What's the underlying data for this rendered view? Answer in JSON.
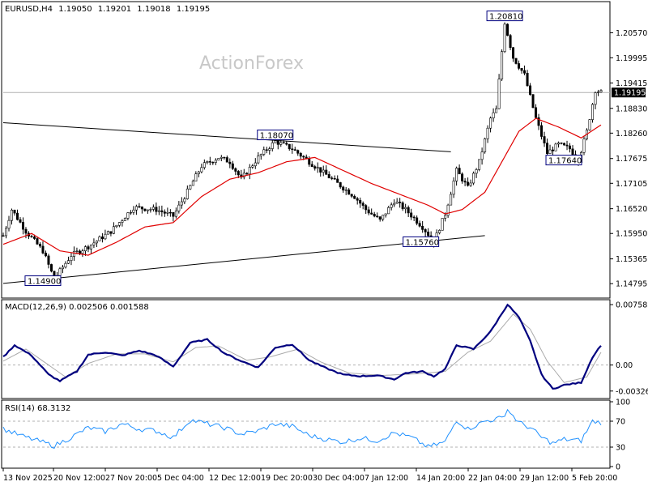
{
  "header": {
    "symbol": "EURUSD,H4",
    "open": "1.19050",
    "high": "1.19201",
    "low": "1.19018",
    "close": "1.19195"
  },
  "watermark": "ActionForex",
  "colors": {
    "candle": "#000000",
    "ma_line": "#e00000",
    "macd_main": "#00007f",
    "macd_signal": "#aaaaaa",
    "rsi_line": "#1e90ff",
    "current_price_box": "#000000",
    "label_border": "#00007f"
  },
  "chart_data": [
    {
      "type": "candlestick",
      "panel": "price",
      "ylim": [
        1.145,
        1.2125
      ],
      "y_ticks": [
        "1.20570",
        "1.19995",
        "1.19415",
        "1.18830",
        "1.18260",
        "1.17675",
        "1.17105",
        "1.16520",
        "1.15950",
        "1.15365",
        "1.14795"
      ],
      "current_price": "1.19195",
      "x_ticks": [
        "13 Nov 2025",
        "20 Nov 12:00",
        "27 Nov 20:00",
        "5 Dec 04:00",
        "12 Dec 12:00",
        "19 Dec 20:00",
        "30 Dec 04:00",
        "7 Jan 12:00",
        "14 Jan 20:00",
        "22 Jan 04:00",
        "29 Jan 12:00",
        "5 Feb 20:00"
      ],
      "price_path": [
        {
          "bar": 0,
          "price": 1.159
        },
        {
          "bar": 3,
          "price": 1.165
        },
        {
          "bar": 8,
          "price": 1.16
        },
        {
          "bar": 14,
          "price": 1.1555
        },
        {
          "bar": 18,
          "price": 1.149
        },
        {
          "bar": 24,
          "price": 1.1545
        },
        {
          "bar": 30,
          "price": 1.1565
        },
        {
          "bar": 38,
          "price": 1.16
        },
        {
          "bar": 46,
          "price": 1.1655
        },
        {
          "bar": 54,
          "price": 1.165
        },
        {
          "bar": 60,
          "price": 1.1635
        },
        {
          "bar": 64,
          "price": 1.168
        },
        {
          "bar": 70,
          "price": 1.175
        },
        {
          "bar": 76,
          "price": 1.177
        },
        {
          "bar": 80,
          "price": 1.176
        },
        {
          "bar": 84,
          "price": 1.172
        },
        {
          "bar": 90,
          "price": 1.177
        },
        {
          "bar": 96,
          "price": 1.1807
        },
        {
          "bar": 102,
          "price": 1.179
        },
        {
          "bar": 108,
          "price": 1.176
        },
        {
          "bar": 112,
          "price": 1.174
        },
        {
          "bar": 118,
          "price": 1.171
        },
        {
          "bar": 124,
          "price": 1.168
        },
        {
          "bar": 128,
          "price": 1.165
        },
        {
          "bar": 133,
          "price": 1.1625
        },
        {
          "bar": 138,
          "price": 1.167
        },
        {
          "bar": 142,
          "price": 1.165
        },
        {
          "bar": 148,
          "price": 1.161
        },
        {
          "bar": 152,
          "price": 1.1576
        },
        {
          "bar": 156,
          "price": 1.164
        },
        {
          "bar": 160,
          "price": 1.174
        },
        {
          "bar": 164,
          "price": 1.17
        },
        {
          "bar": 168,
          "price": 1.176
        },
        {
          "bar": 172,
          "price": 1.186
        },
        {
          "bar": 174,
          "price": 1.188
        },
        {
          "bar": 177,
          "price": 1.2081
        },
        {
          "bar": 180,
          "price": 1.2
        },
        {
          "bar": 184,
          "price": 1.196
        },
        {
          "bar": 188,
          "price": 1.186
        },
        {
          "bar": 192,
          "price": 1.178
        },
        {
          "bar": 196,
          "price": 1.18
        },
        {
          "bar": 200,
          "price": 1.179
        },
        {
          "bar": 203,
          "price": 1.1764
        },
        {
          "bar": 206,
          "price": 1.183
        },
        {
          "bar": 209,
          "price": 1.1925
        },
        {
          "bar": 211,
          "price": 1.192
        }
      ],
      "labels": [
        {
          "text": "1.20810",
          "bar": 177,
          "price": 1.2081
        },
        {
          "text": "1.18070",
          "bar": 96,
          "price": 1.1807
        },
        {
          "text": "1.17640",
          "bar": 203,
          "price": 1.1764
        },
        {
          "text": "1.15760",
          "bar": 152,
          "price": 1.1576
        },
        {
          "text": "1.14900",
          "bar": 18,
          "price": 1.149
        }
      ],
      "trendlines": [
        {
          "from": {
            "bar": 0,
            "price": 1.185
          },
          "to": {
            "bar": 158,
            "price": 1.1783
          }
        },
        {
          "from": {
            "bar": 0,
            "price": 1.148
          },
          "to": {
            "bar": 170,
            "price": 1.159
          }
        }
      ],
      "moving_average_path": [
        {
          "bar": 0,
          "price": 1.157
        },
        {
          "bar": 10,
          "price": 1.1595
        },
        {
          "bar": 20,
          "price": 1.1555
        },
        {
          "bar": 30,
          "price": 1.1545
        },
        {
          "bar": 40,
          "price": 1.1575
        },
        {
          "bar": 50,
          "price": 1.161
        },
        {
          "bar": 60,
          "price": 1.162
        },
        {
          "bar": 70,
          "price": 1.168
        },
        {
          "bar": 80,
          "price": 1.172
        },
        {
          "bar": 90,
          "price": 1.1735
        },
        {
          "bar": 100,
          "price": 1.176
        },
        {
          "bar": 110,
          "price": 1.177
        },
        {
          "bar": 120,
          "price": 1.174
        },
        {
          "bar": 130,
          "price": 1.171
        },
        {
          "bar": 140,
          "price": 1.1685
        },
        {
          "bar": 150,
          "price": 1.166
        },
        {
          "bar": 156,
          "price": 1.164
        },
        {
          "bar": 162,
          "price": 1.165
        },
        {
          "bar": 170,
          "price": 1.169
        },
        {
          "bar": 176,
          "price": 1.176
        },
        {
          "bar": 182,
          "price": 1.183
        },
        {
          "bar": 188,
          "price": 1.186
        },
        {
          "bar": 196,
          "price": 1.184
        },
        {
          "bar": 204,
          "price": 1.1815
        },
        {
          "bar": 211,
          "price": 1.1845
        }
      ]
    },
    {
      "type": "line",
      "panel": "macd",
      "title": "MACD(12,26,9) 0.002506 0.001588",
      "ylim": [
        -0.004,
        0.008
      ],
      "y_ticks": [
        "0.007585",
        "0.00",
        "-0.003264"
      ],
      "main_path": [
        {
          "bar": 0,
          "value": 0.001
        },
        {
          "bar": 4,
          "value": 0.0025
        },
        {
          "bar": 10,
          "value": 0.0012
        },
        {
          "bar": 16,
          "value": -0.0012
        },
        {
          "bar": 20,
          "value": -0.002
        },
        {
          "bar": 26,
          "value": -0.0008
        },
        {
          "bar": 30,
          "value": 0.0013
        },
        {
          "bar": 36,
          "value": 0.0016
        },
        {
          "bar": 42,
          "value": 0.0012
        },
        {
          "bar": 48,
          "value": 0.0018
        },
        {
          "bar": 54,
          "value": 0.0012
        },
        {
          "bar": 60,
          "value": -0.0002
        },
        {
          "bar": 66,
          "value": 0.0028
        },
        {
          "bar": 72,
          "value": 0.0032
        },
        {
          "bar": 78,
          "value": 0.0015
        },
        {
          "bar": 84,
          "value": 0.0005
        },
        {
          "bar": 90,
          "value": -0.0003
        },
        {
          "bar": 96,
          "value": 0.0022
        },
        {
          "bar": 102,
          "value": 0.0026
        },
        {
          "bar": 108,
          "value": 0.0006
        },
        {
          "bar": 114,
          "value": -0.0004
        },
        {
          "bar": 120,
          "value": -0.0012
        },
        {
          "bar": 126,
          "value": -0.0014
        },
        {
          "bar": 132,
          "value": -0.0013
        },
        {
          "bar": 138,
          "value": -0.0018
        },
        {
          "bar": 142,
          "value": -0.001
        },
        {
          "bar": 148,
          "value": -0.0008
        },
        {
          "bar": 152,
          "value": -0.0014
        },
        {
          "bar": 156,
          "value": -0.0005
        },
        {
          "bar": 160,
          "value": 0.0025
        },
        {
          "bar": 166,
          "value": 0.002
        },
        {
          "bar": 172,
          "value": 0.0042
        },
        {
          "bar": 178,
          "value": 0.0076
        },
        {
          "bar": 182,
          "value": 0.006
        },
        {
          "bar": 186,
          "value": 0.003
        },
        {
          "bar": 190,
          "value": -0.0012
        },
        {
          "bar": 194,
          "value": -0.003
        },
        {
          "bar": 198,
          "value": -0.0025
        },
        {
          "bar": 204,
          "value": -0.0022
        },
        {
          "bar": 208,
          "value": 0.001
        },
        {
          "bar": 211,
          "value": 0.0025
        }
      ],
      "signal_path": [
        {
          "bar": 0,
          "value": 0.0005
        },
        {
          "bar": 8,
          "value": 0.002
        },
        {
          "bar": 16,
          "value": 0.0
        },
        {
          "bar": 22,
          "value": -0.0015
        },
        {
          "bar": 30,
          "value": 0.0002
        },
        {
          "bar": 40,
          "value": 0.0014
        },
        {
          "bar": 50,
          "value": 0.0014
        },
        {
          "bar": 60,
          "value": 0.0004
        },
        {
          "bar": 68,
          "value": 0.0022
        },
        {
          "bar": 76,
          "value": 0.0024
        },
        {
          "bar": 86,
          "value": 0.0006
        },
        {
          "bar": 94,
          "value": 0.001
        },
        {
          "bar": 104,
          "value": 0.002
        },
        {
          "bar": 112,
          "value": 0.0004
        },
        {
          "bar": 122,
          "value": -0.001
        },
        {
          "bar": 134,
          "value": -0.0013
        },
        {
          "bar": 146,
          "value": -0.0011
        },
        {
          "bar": 156,
          "value": -0.0008
        },
        {
          "bar": 164,
          "value": 0.0016
        },
        {
          "bar": 172,
          "value": 0.003
        },
        {
          "bar": 180,
          "value": 0.0064
        },
        {
          "bar": 186,
          "value": 0.0045
        },
        {
          "bar": 192,
          "value": 0.0005
        },
        {
          "bar": 198,
          "value": -0.0022
        },
        {
          "bar": 206,
          "value": -0.0015
        },
        {
          "bar": 211,
          "value": 0.0016
        }
      ]
    },
    {
      "type": "line",
      "panel": "rsi",
      "title": "RSI(14) 68.3132",
      "ylim": [
        0,
        100
      ],
      "y_ticks": [
        "100",
        "70",
        "30",
        "0"
      ],
      "levels": [
        70,
        30
      ],
      "path": [
        {
          "bar": 0,
          "value": 58
        },
        {
          "bar": 6,
          "value": 48
        },
        {
          "bar": 12,
          "value": 40
        },
        {
          "bar": 18,
          "value": 32
        },
        {
          "bar": 24,
          "value": 45
        },
        {
          "bar": 30,
          "value": 60
        },
        {
          "bar": 36,
          "value": 54
        },
        {
          "bar": 42,
          "value": 66
        },
        {
          "bar": 48,
          "value": 58
        },
        {
          "bar": 54,
          "value": 55
        },
        {
          "bar": 60,
          "value": 45
        },
        {
          "bar": 66,
          "value": 72
        },
        {
          "bar": 72,
          "value": 66
        },
        {
          "bar": 78,
          "value": 60
        },
        {
          "bar": 84,
          "value": 50
        },
        {
          "bar": 90,
          "value": 55
        },
        {
          "bar": 96,
          "value": 66
        },
        {
          "bar": 102,
          "value": 62
        },
        {
          "bar": 108,
          "value": 48
        },
        {
          "bar": 114,
          "value": 42
        },
        {
          "bar": 120,
          "value": 38
        },
        {
          "bar": 126,
          "value": 44
        },
        {
          "bar": 132,
          "value": 40
        },
        {
          "bar": 138,
          "value": 52
        },
        {
          "bar": 144,
          "value": 45
        },
        {
          "bar": 150,
          "value": 30
        },
        {
          "bar": 156,
          "value": 38
        },
        {
          "bar": 160,
          "value": 72
        },
        {
          "bar": 164,
          "value": 58
        },
        {
          "bar": 170,
          "value": 70
        },
        {
          "bar": 176,
          "value": 75
        },
        {
          "bar": 178,
          "value": 88
        },
        {
          "bar": 182,
          "value": 68
        },
        {
          "bar": 186,
          "value": 60
        },
        {
          "bar": 190,
          "value": 45
        },
        {
          "bar": 194,
          "value": 36
        },
        {
          "bar": 198,
          "value": 42
        },
        {
          "bar": 204,
          "value": 40
        },
        {
          "bar": 208,
          "value": 70
        },
        {
          "bar": 211,
          "value": 68
        }
      ]
    }
  ]
}
